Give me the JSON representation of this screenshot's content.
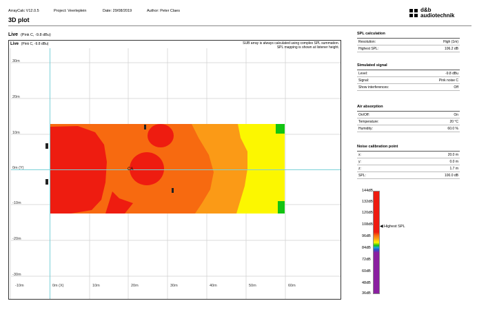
{
  "header": {
    "app": "ArrayCalc V12.0.5",
    "project": "Project: Veerleplein",
    "date": "Date: 29/08/2019",
    "author": "Author: Peter Claes"
  },
  "brand": {
    "line1": "d&b",
    "line2": "audiotechnik"
  },
  "page_title": "3D plot",
  "live": {
    "label": "Live",
    "detail": "(Pink C, -9.8 dBu)"
  },
  "plot": {
    "note_line1": "SUB array is always calculated using complex SPL summation.",
    "note_line2": "SPL mapping is shown at listener height.",
    "y_ticks": [
      "30m",
      "20m",
      "10m",
      "0m (Y)",
      "-10m",
      "-20m",
      "-30m"
    ],
    "x_ticks": [
      "-10m",
      "0m (X)",
      "10m",
      "20m",
      "30m",
      "40m",
      "50m",
      "60m"
    ],
    "ca_label": "CA"
  },
  "panels": [
    {
      "title": "SPL calculation",
      "rows": [
        {
          "label": "Resolution:",
          "value": "High (1m)"
        },
        {
          "label": "Highest SPL:",
          "value": "106.2 dB"
        }
      ]
    },
    {
      "title": "Simulated signal",
      "rows": [
        {
          "label": "Level:",
          "value": "-9.8 dBu"
        },
        {
          "label": "Signal:",
          "value": "Pink noise C"
        },
        {
          "label": "Show interferences:",
          "value": "Off"
        }
      ]
    },
    {
      "title": "Air absorption",
      "rows": [
        {
          "label": "On/Off:",
          "value": "On"
        },
        {
          "label": "Temperature:",
          "value": "20 °C"
        },
        {
          "label": "Humidity:",
          "value": "60.0 %"
        }
      ]
    },
    {
      "title": "Noise calibration point",
      "rows": [
        {
          "label": "x:",
          "value": "20.0 m"
        },
        {
          "label": "y:",
          "value": "0.0 m"
        },
        {
          "label": "z:",
          "value": "1.7 m"
        },
        {
          "label": "SPL:",
          "value": "100.0 dB"
        }
      ]
    }
  ],
  "colorbar": {
    "labels": [
      "144dB",
      "132dB",
      "120dB",
      "108dB",
      "96dB",
      "84dB",
      "72dB",
      "60dB",
      "48dB",
      "36dB"
    ],
    "marker": "Highest SPL",
    "highest_spl_db": 106.2
  },
  "colors": {
    "red": "#ee1c10",
    "orange": "#f76a10",
    "orange_light": "#fb9a16",
    "yellow": "#fcf700",
    "green": "#12c412",
    "purple": "#8a1fa0"
  }
}
